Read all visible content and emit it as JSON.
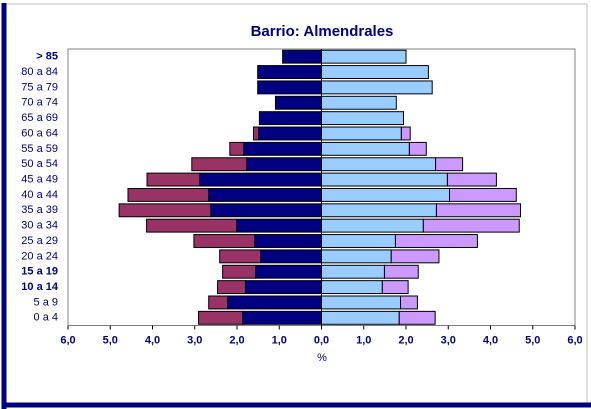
{
  "chart_data": {
    "type": "pyramid",
    "title": "Barrio: Almendrales",
    "x_label": "%",
    "categories": [
      "> 85",
      "80 a 84",
      "75 a 79",
      "70 a 74",
      "65 a 69",
      "60 a 64",
      "55 a 59",
      "50 a 54",
      "45 a 49",
      "40 a 44",
      "35 a 39",
      "30 a 34",
      "25 a 29",
      "20 a 24",
      "15 a 19",
      "10 a 14",
      "5 a 9",
      "0 a 4"
    ],
    "series": [
      {
        "color": "#000080",
        "values": [
          -0.92,
          -1.51,
          -1.51,
          -1.09,
          -1.47,
          -1.49,
          -1.84,
          -1.77,
          -2.88,
          -2.67,
          -2.62,
          -2.01,
          -1.58,
          -1.44,
          -1.56,
          -1.8,
          -2.22,
          -1.87
        ]
      },
      {
        "color": "#993366",
        "values": [
          0,
          0,
          0,
          0,
          0,
          -0.12,
          -0.33,
          -1.3,
          -1.25,
          -1.91,
          -2.17,
          -2.13,
          -1.44,
          -0.97,
          -0.78,
          -0.66,
          -0.45,
          -1.04
        ]
      },
      {
        "color": "#99ccff",
        "values": [
          2.0,
          2.53,
          2.62,
          1.77,
          1.94,
          1.89,
          2.08,
          2.7,
          2.98,
          3.03,
          2.72,
          2.41,
          1.75,
          1.65,
          1.49,
          1.44,
          1.87,
          1.84
        ]
      },
      {
        "color": "#cc99ff",
        "values": [
          0,
          0,
          0,
          0,
          0,
          0.21,
          0.4,
          0.64,
          1.16,
          1.58,
          1.99,
          2.27,
          1.94,
          1.13,
          0.8,
          0.61,
          0.4,
          0.85
        ]
      }
    ],
    "xlim": [
      -6,
      6
    ],
    "xticks": [
      {
        "value": -6,
        "label": "6,0"
      },
      {
        "value": -5,
        "label": "5,0"
      },
      {
        "value": -4,
        "label": "4,0"
      },
      {
        "value": -3,
        "label": "3,0"
      },
      {
        "value": -2,
        "label": "2,0"
      },
      {
        "value": -1,
        "label": "1,0"
      },
      {
        "value": 0,
        "label": "0,0"
      },
      {
        "value": 1,
        "label": "1,0"
      },
      {
        "value": 2,
        "label": "2,0"
      },
      {
        "value": 3,
        "label": "3,0"
      },
      {
        "value": 4,
        "label": "4,0"
      },
      {
        "value": 5,
        "label": "5,0"
      },
      {
        "value": 6,
        "label": "6,0"
      }
    ]
  }
}
